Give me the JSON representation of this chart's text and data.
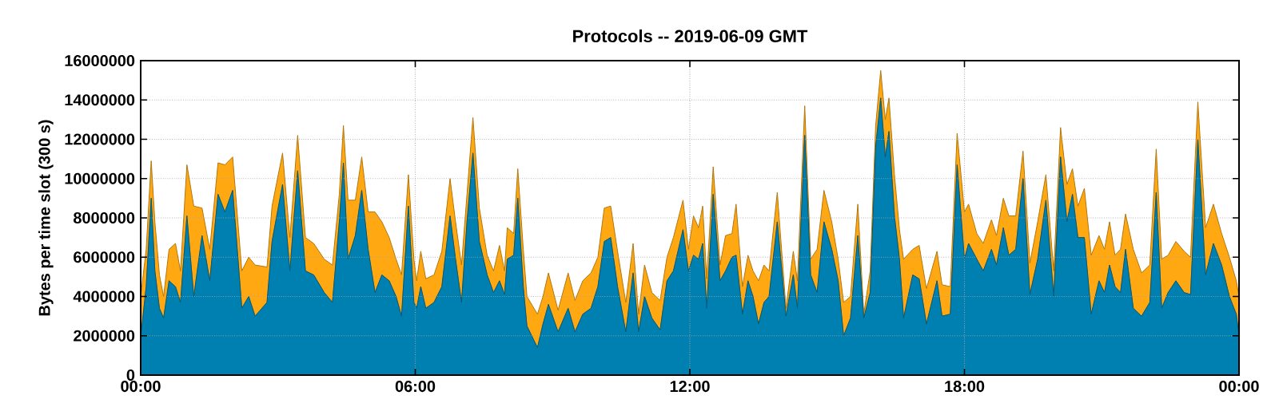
{
  "chart_data": {
    "type": "area",
    "stacked": true,
    "title": "Protocols -- 2019-06-09 GMT",
    "ylabel": "Bytes per time slot (300 s)",
    "x": [
      0,
      0.12,
      0.23,
      0.31,
      0.41,
      0.5,
      0.62,
      0.76,
      0.87,
      1.01,
      1.16,
      1.34,
      1.51,
      1.69,
      1.84,
      2.01,
      2.21,
      2.36,
      2.5,
      2.76,
      2.87,
      3.1,
      3.26,
      3.43,
      3.6,
      3.78,
      4.01,
      4.19,
      4.34,
      4.43,
      4.53,
      4.69,
      4.83,
      4.97,
      5.12,
      5.27,
      5.43,
      5.58,
      5.7,
      5.85,
      5.97,
      6.03,
      6.12,
      6.23,
      6.41,
      6.58,
      6.76,
      6.88,
      7.01,
      7.13,
      7.26,
      7.4,
      7.57,
      7.71,
      7.84,
      7.95,
      8.01,
      8.15,
      8.24,
      8.36,
      8.44,
      8.67,
      8.79,
      8.91,
      9.12,
      9.34,
      9.49,
      9.66,
      9.84,
      9.99,
      10.13,
      10.27,
      10.42,
      10.6,
      10.76,
      10.88,
      11.01,
      11.17,
      11.35,
      11.5,
      11.64,
      11.85,
      11.97,
      12.08,
      12.19,
      12.28,
      12.37,
      12.51,
      12.66,
      12.78,
      12.92,
      13.01,
      13.15,
      13.27,
      13.38,
      13.5,
      13.62,
      13.73,
      13.91,
      14.1,
      14.26,
      14.35,
      14.51,
      14.64,
      14.78,
      14.93,
      15.1,
      15.24,
      15.36,
      15.51,
      15.67,
      15.8,
      15.94,
      16.06,
      16.17,
      16.27,
      16.35,
      16.47,
      16.58,
      16.67,
      16.87,
      17.01,
      17.17,
      17.4,
      17.51,
      17.69,
      17.84,
      18.0,
      18.09,
      18.27,
      18.41,
      18.59,
      18.7,
      18.85,
      18.97,
      19.12,
      19.28,
      19.43,
      19.6,
      19.78,
      19.95,
      20.1,
      20.24,
      20.36,
      20.48,
      20.62,
      20.77,
      20.94,
      21.06,
      21.17,
      21.29,
      21.41,
      21.52,
      21.69,
      21.87,
      22.05,
      22.19,
      22.31,
      22.45,
      22.62,
      22.8,
      22.94,
      23.1,
      23.27,
      23.44,
      23.62,
      23.79,
      23.94,
      24.0
    ],
    "series": [
      {
        "color": "#0080b0",
        "values": [
          1900000,
          4500000,
          9000000,
          5300000,
          3400000,
          2900000,
          4800000,
          4500000,
          3700000,
          8100000,
          4000000,
          7100000,
          4800000,
          9200000,
          8300000,
          9400000,
          3400000,
          4000000,
          3000000,
          3700000,
          6800000,
          9700000,
          5300000,
          10400000,
          5300000,
          5100000,
          4200000,
          3700000,
          7800000,
          10800000,
          5900000,
          7100000,
          9400000,
          6400000,
          4200000,
          5100000,
          4800000,
          4000000,
          3000000,
          8600000,
          3700000,
          3400000,
          4500000,
          3400000,
          3700000,
          4500000,
          8100000,
          5900000,
          3700000,
          7800000,
          11300000,
          6800000,
          5100000,
          4200000,
          4800000,
          4100000,
          5900000,
          6100000,
          9000000,
          4500000,
          2500000,
          1400000,
          2600000,
          3600000,
          2200000,
          3400000,
          2200000,
          3100000,
          3400000,
          4500000,
          6800000,
          7000000,
          4500000,
          2200000,
          5200000,
          2200000,
          4000000,
          2900000,
          2300000,
          4800000,
          5300000,
          7400000,
          5300000,
          6100000,
          5900000,
          6700000,
          3400000,
          9200000,
          4800000,
          5300000,
          6000000,
          6100000,
          3100000,
          4800000,
          4000000,
          2600000,
          3700000,
          4000000,
          7800000,
          3000000,
          5100000,
          3400000,
          12200000,
          5100000,
          4200000,
          7800000,
          6400000,
          4800000,
          2000000,
          2900000,
          7100000,
          2900000,
          4200000,
          11600000,
          14100000,
          11100000,
          12400000,
          8100000,
          5900000,
          2900000,
          5100000,
          4900000,
          2600000,
          4800000,
          3000000,
          3100000,
          10700000,
          5900000,
          6700000,
          5900000,
          5300000,
          6400000,
          5600000,
          7500000,
          6100000,
          6400000,
          10000000,
          4100000,
          5900000,
          8900000,
          4000000,
          11100000,
          7800000,
          9200000,
          7000000,
          7000000,
          3100000,
          4800000,
          4200000,
          5600000,
          4500000,
          4200000,
          6400000,
          3400000,
          3000000,
          3700000,
          9300000,
          3400000,
          4200000,
          4800000,
          4200000,
          4100000,
          12000000,
          5100000,
          6700000,
          5600000,
          4000000,
          3100000,
          2000000
        ]
      },
      {
        "color": "#ffa812",
        "values": [
          2100000,
          1900000,
          1900000,
          2500000,
          1700000,
          1100000,
          1600000,
          2200000,
          1600000,
          2600000,
          4600000,
          1400000,
          1600000,
          1600000,
          2400000,
          1700000,
          1900000,
          2000000,
          2600000,
          1800000,
          1800000,
          1600000,
          1700000,
          1800000,
          1700000,
          1600000,
          1700000,
          1900000,
          1400000,
          1900000,
          3000000,
          1800000,
          1700000,
          1900000,
          4100000,
          2700000,
          2200000,
          1900000,
          2100000,
          1600000,
          2200000,
          1400000,
          1800000,
          1500000,
          1400000,
          1800000,
          1900000,
          1900000,
          1900000,
          1400000,
          1800000,
          1700000,
          1000000,
          1100000,
          1800000,
          1200000,
          1600000,
          1100000,
          1500000,
          1900000,
          1500000,
          1700000,
          1400000,
          1600000,
          1100000,
          1800000,
          1600000,
          1700000,
          1800000,
          1500000,
          1700000,
          1600000,
          1800000,
          1500000,
          1500000,
          900000,
          1600000,
          1300000,
          1500000,
          1200000,
          1700000,
          1500000,
          1100000,
          2000000,
          1600000,
          1900000,
          1500000,
          1400000,
          800000,
          1800000,
          1200000,
          2600000,
          1400000,
          1300000,
          1300000,
          2200000,
          1900000,
          1300000,
          1500000,
          400000,
          1200000,
          1400000,
          1500000,
          800000,
          2200000,
          1600000,
          1400000,
          1100000,
          1700000,
          1100000,
          1600000,
          200000,
          1100000,
          1100000,
          1400000,
          1900000,
          1700000,
          2100000,
          1500000,
          3000000,
          1300000,
          1700000,
          1800000,
          1500000,
          1600000,
          1400000,
          1600000,
          2400000,
          2000000,
          1300000,
          1400000,
          1500000,
          1500000,
          1500000,
          2000000,
          1700000,
          1400000,
          1600000,
          1900000,
          1300000,
          1300000,
          1500000,
          1900000,
          1300000,
          1600000,
          2500000,
          3000000,
          2300000,
          2200000,
          2200000,
          1600000,
          2200000,
          1800000,
          3000000,
          2200000,
          1900000,
          2200000,
          2500000,
          1900000,
          2000000,
          2100000,
          1900000,
          1900000,
          2400000,
          2000000,
          1600000,
          2000000,
          1700000,
          2000000
        ]
      }
    ],
    "xlim": [
      0,
      24
    ],
    "xticks": [
      {
        "value": 0,
        "label": "00:00"
      },
      {
        "value": 6,
        "label": "06:00"
      },
      {
        "value": 12,
        "label": "12:00"
      },
      {
        "value": 18,
        "label": "18:00"
      },
      {
        "value": 24,
        "label": "00:00"
      }
    ],
    "ylim": [
      0,
      16000000
    ],
    "yticks": [
      0,
      2000000,
      4000000,
      6000000,
      8000000,
      10000000,
      12000000,
      14000000,
      16000000
    ],
    "grid": true
  }
}
